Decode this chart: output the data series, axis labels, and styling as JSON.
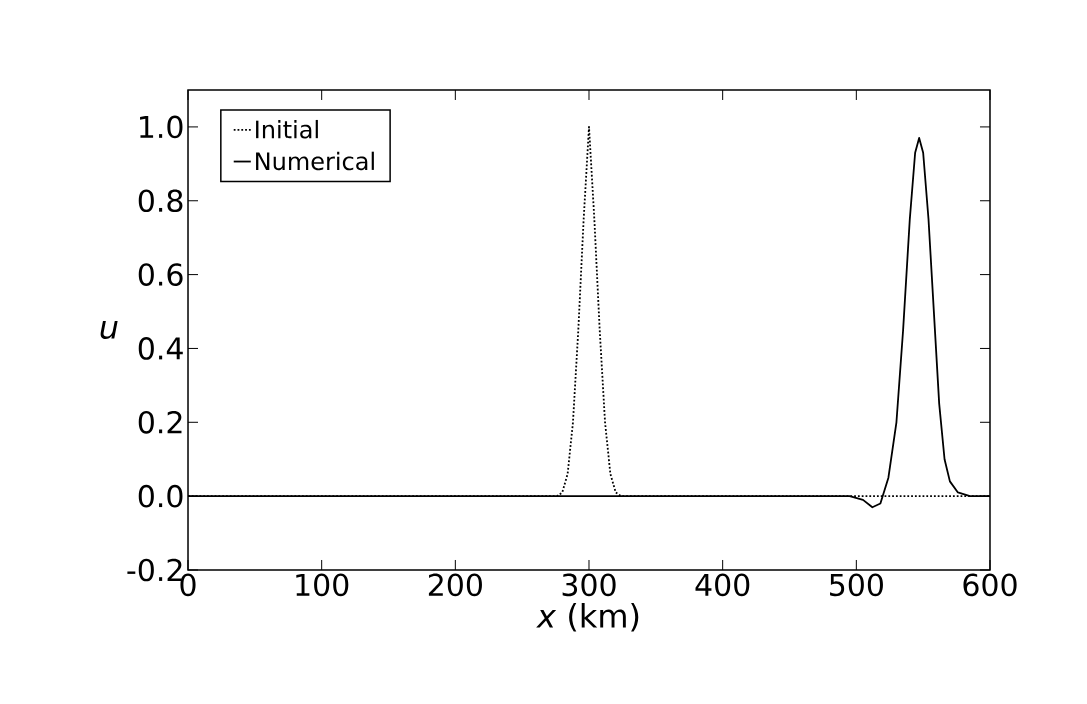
{
  "chart_data": {
    "type": "line",
    "xlabel": "*x* (km)",
    "ylabel": "*u*",
    "xlim": [
      0,
      600
    ],
    "ylim": [
      -0.2,
      1.1
    ],
    "xticks": [
      0,
      100,
      200,
      300,
      400,
      500,
      600
    ],
    "yticks": [
      -0.2,
      {
        "value": 0,
        "label": "0.0"
      },
      0.2,
      0.4,
      0.6,
      0.8,
      {
        "value": 1,
        "label": "1.0"
      }
    ],
    "legend": "top left",
    "grid": false,
    "series": [
      {
        "name": "Initial",
        "color": "#000000",
        "line_style": "dotted",
        "x": [
          0,
          100,
          200,
          276,
          280,
          284,
          288,
          292,
          296,
          300,
          304,
          308,
          312,
          316,
          320,
          324,
          400,
          500,
          600
        ],
        "values": [
          0,
          0,
          0,
          0,
          0.01,
          0.06,
          0.2,
          0.45,
          0.75,
          1.0,
          0.75,
          0.45,
          0.2,
          0.06,
          0.01,
          0,
          0,
          0,
          0
        ]
      },
      {
        "name": "Numerical",
        "color": "#000000",
        "line_style": "solid",
        "x": [
          0,
          100,
          200,
          300,
          400,
          495,
          505,
          512,
          518,
          524,
          530,
          535,
          540,
          544,
          547,
          550,
          554,
          558,
          562,
          566,
          570,
          576,
          585,
          600
        ],
        "values": [
          0,
          0,
          0,
          0,
          0,
          0,
          -0.01,
          -0.03,
          -0.02,
          0.05,
          0.2,
          0.45,
          0.75,
          0.93,
          0.97,
          0.93,
          0.75,
          0.5,
          0.25,
          0.1,
          0.04,
          0.01,
          0,
          0
        ]
      }
    ]
  }
}
